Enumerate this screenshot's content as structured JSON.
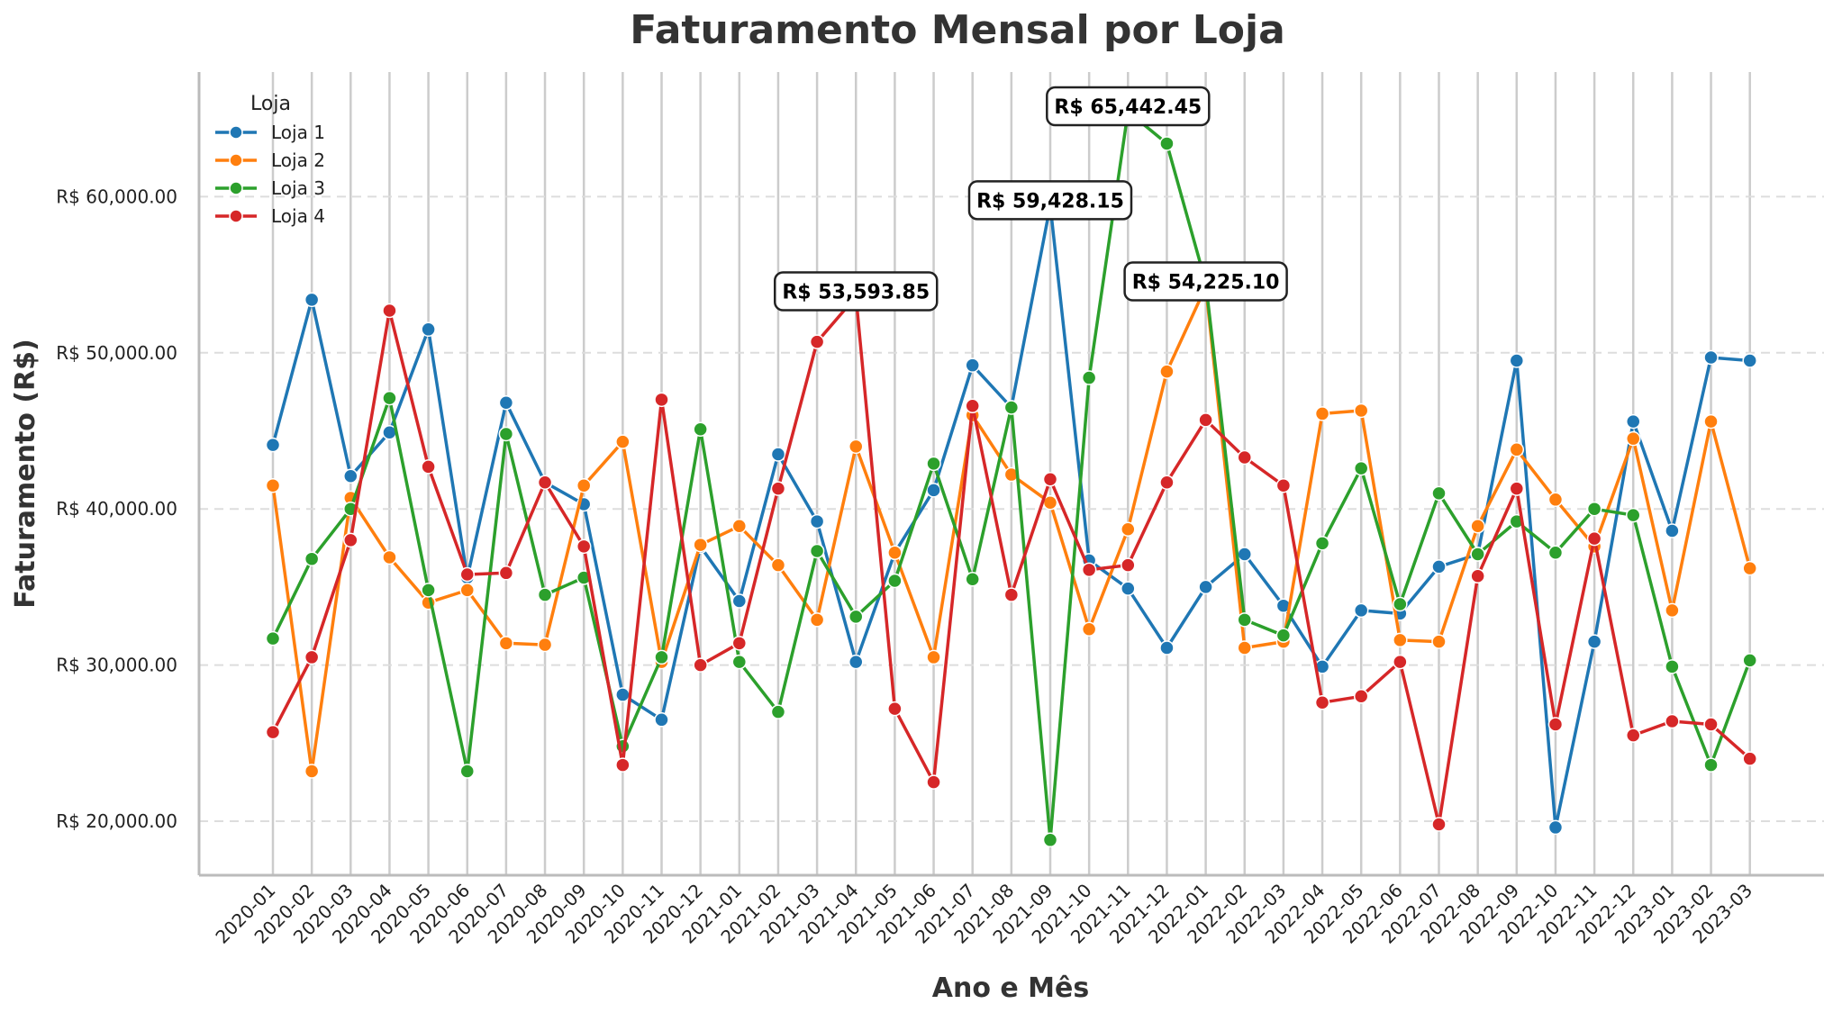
{
  "chart_data": {
    "type": "line",
    "title": "Faturamento Mensal por Loja",
    "xlabel": "Ano e Mês",
    "ylabel": "Faturamento (R$)",
    "ylim": [
      16500,
      68000
    ],
    "yticks": [
      20000,
      30000,
      40000,
      50000,
      60000
    ],
    "ytick_labels": [
      "R$ 20,000.00",
      "R$ 30,000.00",
      "R$ 40,000.00",
      "R$ 50,000.00",
      "R$ 60,000.00"
    ],
    "grid": "horizontal dashed + vertical",
    "legend_title": "Loja",
    "legend_position": "top-left",
    "categories": [
      "2020-01",
      "2020-02",
      "2020-03",
      "2020-04",
      "2020-05",
      "2020-06",
      "2020-07",
      "2020-08",
      "2020-09",
      "2020-10",
      "2020-11",
      "2020-12",
      "2021-01",
      "2021-02",
      "2021-03",
      "2021-04",
      "2021-05",
      "2021-06",
      "2021-07",
      "2021-08",
      "2021-09",
      "2021-10",
      "2021-11",
      "2021-12",
      "2022-01",
      "2022-02",
      "2022-03",
      "2022-04",
      "2022-05",
      "2022-06",
      "2022-07",
      "2022-08",
      "2022-09",
      "2022-10",
      "2022-11",
      "2022-12",
      "2023-01",
      "2023-02",
      "2023-03"
    ],
    "series": [
      {
        "name": "Loja 1",
        "color": "#1f77b4",
        "values": [
          44100,
          53400,
          42100,
          44900,
          51500,
          35600,
          46800,
          41700,
          40300,
          28100,
          26500,
          37600,
          34100,
          43500,
          39200,
          30200,
          37200,
          41200,
          49200,
          46500,
          59428.15,
          36700,
          34900,
          31100,
          35000,
          37100,
          33800,
          29900,
          33500,
          33300,
          36300,
          37100,
          49500,
          19600,
          31500,
          45600,
          38600,
          49700,
          49500
        ]
      },
      {
        "name": "Loja 2",
        "color": "#ff7f0e",
        "values": [
          41500,
          23200,
          40700,
          36900,
          34000,
          34800,
          31400,
          31300,
          41500,
          44300,
          30200,
          37700,
          38900,
          36400,
          32900,
          44000,
          37200,
          30500,
          46000,
          42200,
          40400,
          32300,
          38700,
          48800,
          54225.1,
          31100,
          31500,
          46100,
          46300,
          31600,
          31500,
          38900,
          43800,
          40600,
          37600,
          44500,
          33500,
          45600,
          36200
        ]
      },
      {
        "name": "Loja 3",
        "color": "#2ca02c",
        "values": [
          31700,
          36800,
          40000,
          47100,
          34800,
          23200,
          44800,
          34500,
          35600,
          24800,
          30500,
          45100,
          30200,
          27000,
          37300,
          33100,
          35400,
          42900,
          35500,
          46500,
          18800,
          48400,
          65442.45,
          63400,
          54500,
          32900,
          31900,
          37800,
          42600,
          33900,
          41000,
          37100,
          39200,
          37200,
          40000,
          39600,
          29900,
          23600,
          30300
        ]
      },
      {
        "name": "Loja 4",
        "color": "#d62728",
        "values": [
          25700,
          30500,
          38000,
          52700,
          42700,
          35800,
          35900,
          41700,
          37600,
          23600,
          47000,
          30000,
          31400,
          41300,
          50700,
          53593.85,
          27200,
          22500,
          46600,
          34500,
          41900,
          36100,
          36400,
          41700,
          45700,
          43300,
          41500,
          27600,
          28000,
          30200,
          19800,
          35700,
          41300,
          26200,
          38100,
          25500,
          26400,
          26200,
          24000
        ]
      }
    ],
    "annotations": [
      {
        "label": "R$ 53,593.85",
        "series": 3,
        "index": 15
      },
      {
        "label": "R$ 59,428.15",
        "series": 0,
        "index": 20
      },
      {
        "label": "R$ 65,442.45",
        "series": 2,
        "index": 22
      },
      {
        "label": "R$ 54,225.10",
        "series": 1,
        "index": 24
      }
    ]
  }
}
